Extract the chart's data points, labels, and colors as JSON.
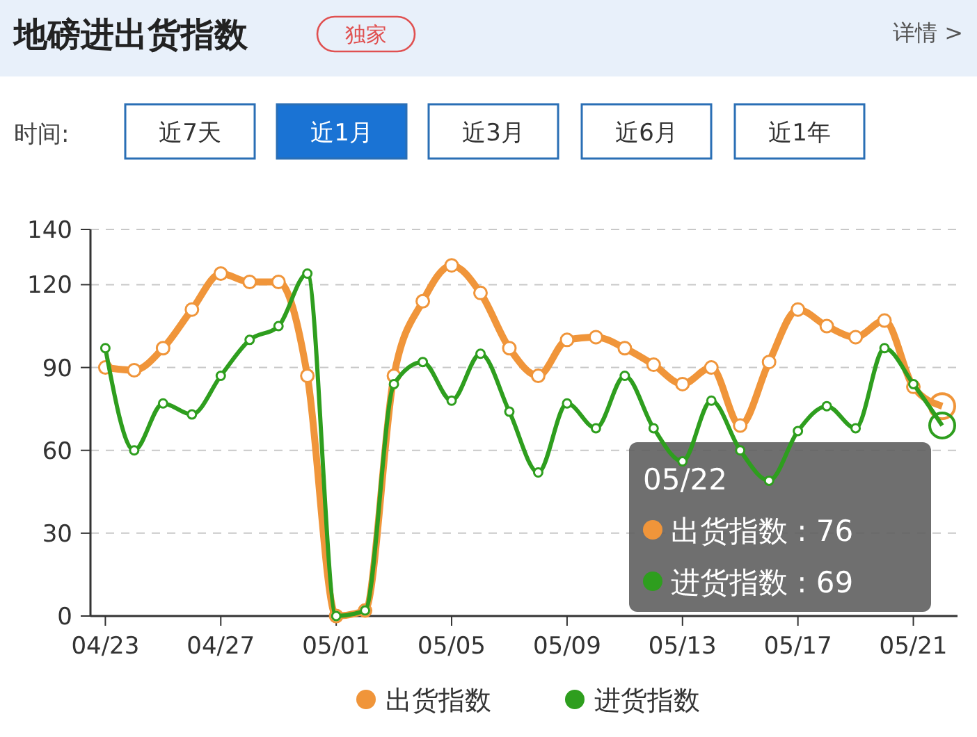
{
  "chart_data": {
    "type": "line",
    "title": "地磅进出货指数",
    "categories": [
      "04/23",
      null,
      null,
      null,
      "04/27",
      null,
      null,
      null,
      "05/01",
      null,
      null,
      null,
      "05/05",
      null,
      null,
      null,
      "05/09",
      null,
      null,
      null,
      "05/13",
      null,
      null,
      null,
      "05/17",
      null,
      null,
      null,
      "05/21",
      null
    ],
    "series": [
      {
        "name": "出货指数",
        "color": "#f0953a",
        "values": [
          90,
          89,
          97,
          111,
          124,
          121,
          121,
          87,
          0,
          2,
          87,
          114,
          127,
          117,
          97,
          87,
          100,
          101,
          97,
          91,
          84,
          90,
          69,
          92,
          111,
          105,
          101,
          107,
          83,
          76
        ]
      },
      {
        "name": "进货指数",
        "color": "#2e9e1e",
        "values": [
          97,
          60,
          77,
          73,
          87,
          100,
          105,
          124,
          0,
          2,
          84,
          92,
          78,
          95,
          74,
          52,
          77,
          68,
          87,
          68,
          56,
          78,
          60,
          49,
          67,
          76,
          68,
          97,
          84,
          69
        ]
      }
    ],
    "ylim": [
      0,
      140
    ],
    "yticks": [
      0,
      30,
      60,
      90,
      120,
      140
    ],
    "grid": "y",
    "legend": "bottom",
    "marker": "circle",
    "line_style": "solid",
    "annotations": [
      "独家",
      "详情 >",
      "时间:",
      "近7天",
      "近1月",
      "近3月",
      "近6月",
      "近1年",
      "05/22",
      "出货指数 : 76",
      "进货指数 : 69"
    ]
  }
}
